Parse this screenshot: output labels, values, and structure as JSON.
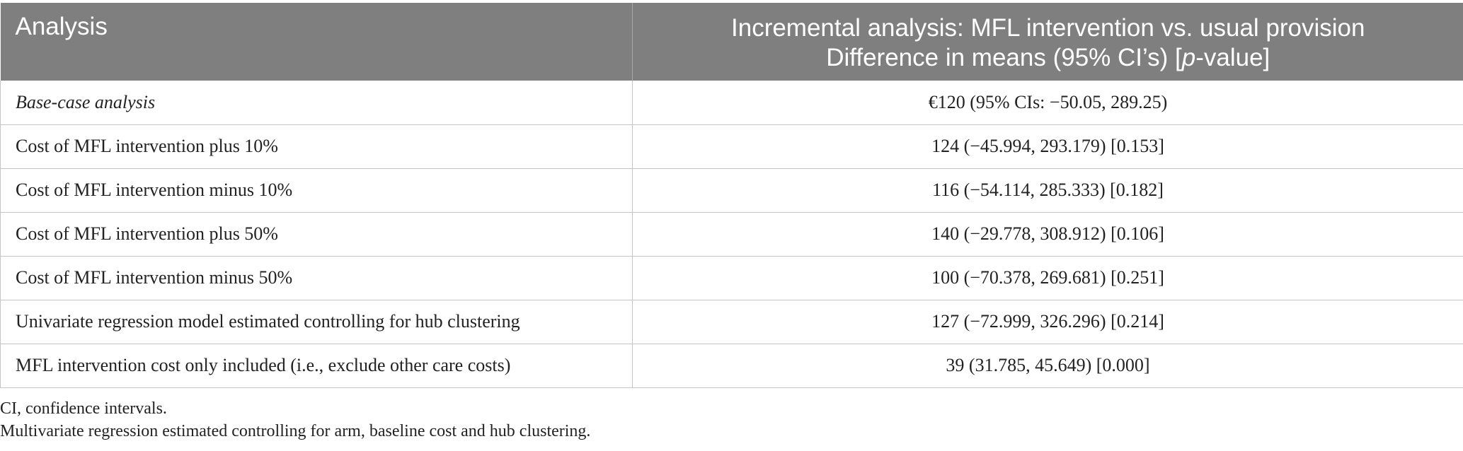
{
  "table": {
    "headers": {
      "analysis": "Analysis",
      "incremental_line1": "Incremental analysis: MFL intervention vs. usual provision",
      "incremental_line2_before": "Difference in means (95% CI’s) [",
      "incremental_line2_italic": "p",
      "incremental_line2_after": "-value]"
    },
    "rows": [
      {
        "analysis": "Base-case analysis",
        "value": "€120 (95% CIs: −50.05, 289.25)"
      },
      {
        "analysis": "Cost of MFL intervention plus 10%",
        "value": "124 (−45.994, 293.179) [0.153]"
      },
      {
        "analysis": "Cost of MFL intervention minus 10%",
        "value": "116 (−54.114, 285.333) [0.182]"
      },
      {
        "analysis": "Cost of MFL intervention plus 50%",
        "value": "140 (−29.778, 308.912) [0.106]"
      },
      {
        "analysis": "Cost of MFL intervention minus 50%",
        "value": "100 (−70.378, 269.681) [0.251]"
      },
      {
        "analysis": "Univariate regression model estimated controlling for hub clustering",
        "value": "127 (−72.999, 326.296) [0.214]"
      },
      {
        "analysis": "MFL intervention cost only included (i.e., exclude other care costs)",
        "value": "39 (31.785, 45.649) [0.000]"
      }
    ]
  },
  "footnotes": [
    "CI, confidence intervals.",
    "Multivariate regression estimated controlling for arm, baseline cost and hub clustering."
  ],
  "colors": {
    "header_bg": "#7f7f7f",
    "header_text": "#ffffff",
    "grid": "#c4c4c4",
    "body_text": "#222222"
  }
}
